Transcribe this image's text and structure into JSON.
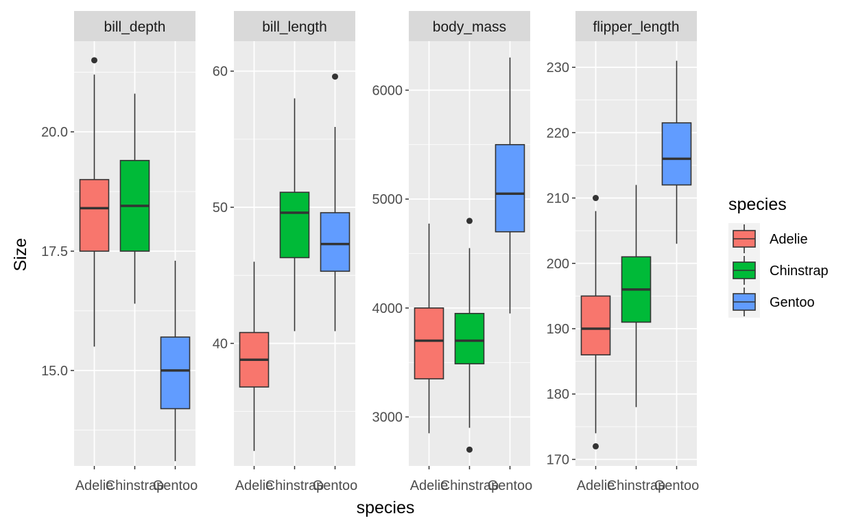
{
  "chart_data": {
    "type": "box",
    "xlabel": "species",
    "ylabel": "Size",
    "categories": [
      "Adelie",
      "Chinstrap",
      "Gentoo"
    ],
    "colors": {
      "Adelie": "#F8766D",
      "Chinstrap": "#00BA38",
      "Gentoo": "#619CFF"
    },
    "legend": {
      "title": "species",
      "position": "right",
      "entries": [
        "Adelie",
        "Chinstrap",
        "Gentoo"
      ]
    },
    "grid": true,
    "panels": [
      {
        "name": "bill_depth",
        "ylim": [
          13.0,
          21.9
        ],
        "ticks": [
          15.0,
          17.5,
          20.0
        ],
        "tick_labels": [
          "15.0",
          "17.5",
          "20.0"
        ],
        "minor_ticks": [
          13.75,
          16.25,
          18.75,
          21.25
        ],
        "boxes": [
          {
            "species": "Adelie",
            "min": 15.5,
            "q1": 17.5,
            "median": 18.4,
            "q3": 19.0,
            "max": 21.2,
            "outliers": [
              21.5
            ]
          },
          {
            "species": "Chinstrap",
            "min": 16.4,
            "q1": 17.5,
            "median": 18.45,
            "q3": 19.4,
            "max": 20.8,
            "outliers": []
          },
          {
            "species": "Gentoo",
            "min": 13.1,
            "q1": 14.2,
            "median": 15.0,
            "q3": 15.7,
            "max": 17.3,
            "outliers": []
          }
        ]
      },
      {
        "name": "bill_length",
        "ylim": [
          31.0,
          62.2
        ],
        "ticks": [
          40,
          50,
          60
        ],
        "tick_labels": [
          "40",
          "50",
          "60"
        ],
        "minor_ticks": [
          35,
          45,
          55
        ],
        "boxes": [
          {
            "species": "Adelie",
            "min": 32.1,
            "q1": 36.8,
            "median": 38.8,
            "q3": 40.8,
            "max": 46.0,
            "outliers": []
          },
          {
            "species": "Chinstrap",
            "min": 40.9,
            "q1": 46.3,
            "median": 49.6,
            "q3": 51.1,
            "max": 58.0,
            "outliers": []
          },
          {
            "species": "Gentoo",
            "min": 40.9,
            "q1": 45.3,
            "median": 47.3,
            "q3": 49.6,
            "max": 55.9,
            "outliers": [
              59.6
            ]
          }
        ]
      },
      {
        "name": "body_mass",
        "ylim": [
          2550,
          6450
        ],
        "ticks": [
          3000,
          4000,
          5000,
          6000
        ],
        "tick_labels": [
          "3000",
          "4000",
          "5000",
          "6000"
        ],
        "minor_ticks": [
          3500,
          4500,
          5500
        ],
        "boxes": [
          {
            "species": "Adelie",
            "min": 2850,
            "q1": 3350,
            "median": 3700,
            "q3": 4000,
            "max": 4775,
            "outliers": []
          },
          {
            "species": "Chinstrap",
            "min": 2900,
            "q1": 3488,
            "median": 3700,
            "q3": 3950,
            "max": 4550,
            "outliers": [
              4800,
              2700
            ]
          },
          {
            "species": "Gentoo",
            "min": 3950,
            "q1": 4700,
            "median": 5050,
            "q3": 5500,
            "max": 6300,
            "outliers": []
          }
        ]
      },
      {
        "name": "flipper_length",
        "ylim": [
          169.0,
          234.0
        ],
        "ticks": [
          170,
          180,
          190,
          200,
          210,
          220,
          230
        ],
        "tick_labels": [
          "170",
          "180",
          "190",
          "200",
          "210",
          "220",
          "230"
        ],
        "minor_ticks": [
          175,
          185,
          195,
          205,
          215,
          225
        ],
        "boxes": [
          {
            "species": "Adelie",
            "min": 174,
            "q1": 186,
            "median": 190,
            "q3": 195,
            "max": 208,
            "outliers": [
              210,
              172
            ]
          },
          {
            "species": "Chinstrap",
            "min": 178,
            "q1": 191,
            "median": 196,
            "q3": 201,
            "max": 212,
            "outliers": []
          },
          {
            "species": "Gentoo",
            "min": 203,
            "q1": 212,
            "median": 216,
            "q3": 221.5,
            "max": 231,
            "outliers": []
          }
        ]
      }
    ]
  }
}
